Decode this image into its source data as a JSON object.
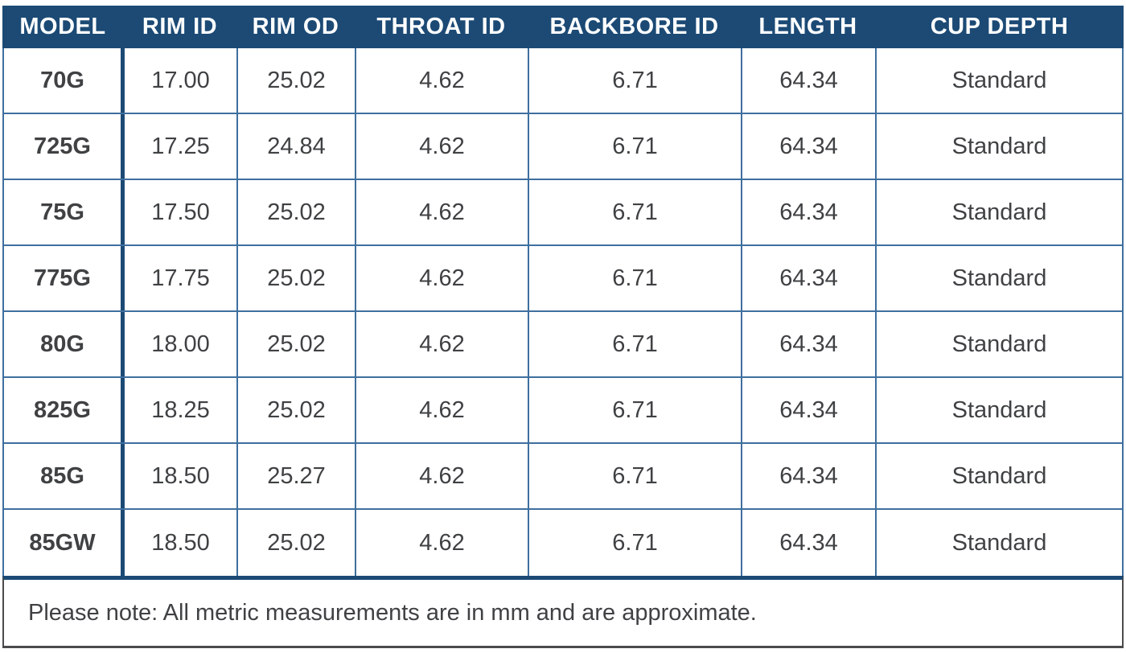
{
  "table": {
    "headers": [
      "MODEL",
      "RIM ID",
      "RIM OD",
      "THROAT ID",
      "BACKBORE ID",
      "LENGTH",
      "CUP DEPTH"
    ],
    "rows": [
      [
        "70G",
        "17.00",
        "25.02",
        "4.62",
        "6.71",
        "64.34",
        "Standard"
      ],
      [
        "725G",
        "17.25",
        "24.84",
        "4.62",
        "6.71",
        "64.34",
        "Standard"
      ],
      [
        "75G",
        "17.50",
        "25.02",
        "4.62",
        "6.71",
        "64.34",
        "Standard"
      ],
      [
        "775G",
        "17.75",
        "25.02",
        "4.62",
        "6.71",
        "64.34",
        "Standard"
      ],
      [
        "80G",
        "18.00",
        "25.02",
        "4.62",
        "6.71",
        "64.34",
        "Standard"
      ],
      [
        "825G",
        "18.25",
        "25.02",
        "4.62",
        "6.71",
        "64.34",
        "Standard"
      ],
      [
        "85G",
        "18.50",
        "25.27",
        "4.62",
        "6.71",
        "64.34",
        "Standard"
      ],
      [
        "85GW",
        "18.50",
        "25.02",
        "4.62",
        "6.71",
        "64.34",
        "Standard"
      ]
    ],
    "note": "Please note: All metric measurements are in mm and are approximate."
  },
  "colors": {
    "header_bg": "#1c4a75",
    "grid_line": "#3f6f9f",
    "accent_border": "#1c4a75",
    "footer_border": "#4b4b4d",
    "text": "#3f4143",
    "header_text": "#ffffff"
  }
}
